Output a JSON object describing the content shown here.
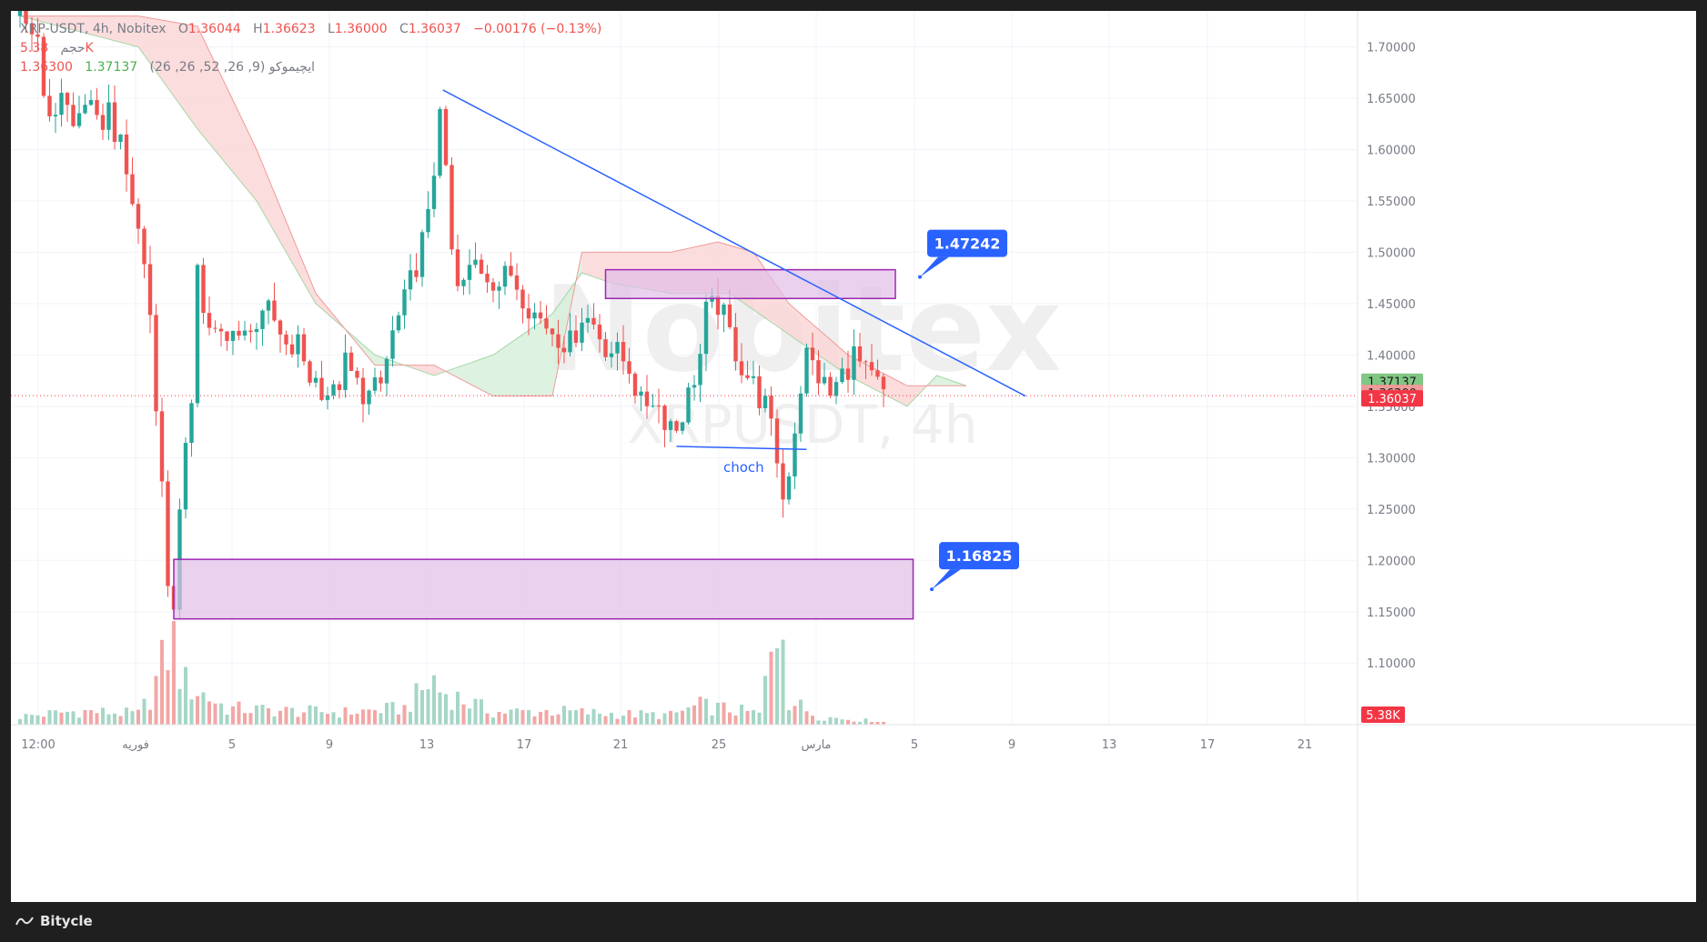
{
  "header": {
    "symbol": "XRP-USDT, 4h, Nobitex",
    "open_label": "O",
    "open": "1.36044",
    "high_label": "H",
    "high": "1.36623",
    "low_label": "L",
    "low": "1.36000",
    "close_label": "C",
    "close": "1.36037",
    "change": "−0.00176 (−0.13%)",
    "volume_label": "حجم",
    "volume_value": "5.38K",
    "ichimoku_label": "ایچیموکو (9, 26, 52, 26, 26)",
    "ichimoku_value1": "1.37137",
    "ichimoku_value2": "1.36300"
  },
  "watermark": {
    "line1": "Nobitex",
    "line2": "XRPUSDT, 4h"
  },
  "footer": {
    "brand": "Bitycle"
  },
  "colors": {
    "up": "#26a69a",
    "down": "#ef5350",
    "trendline": "#2962ff",
    "zone_fill": "#e1bee7",
    "zone_stroke": "#9c27b0",
    "callout": "#2962ff",
    "cloud_red": "#fbd5d5",
    "cloud_green": "#d6efd9"
  },
  "chart_data": {
    "type": "candlestick",
    "title": "XRP-USDT, 4h, Nobitex",
    "ylim": [
      1.04,
      1.735
    ],
    "y_ticks": [
      "1.10000",
      "1.15000",
      "1.20000",
      "1.25000",
      "1.30000",
      "1.35000",
      "1.40000",
      "1.45000",
      "1.50000",
      "1.55000",
      "1.60000",
      "1.65000",
      "1.70000"
    ],
    "x_ticks": [
      "12:00",
      "فوریه",
      "5",
      "9",
      "13",
      "17",
      "21",
      "25",
      "مارس",
      "5",
      "9",
      "13",
      "17",
      "21"
    ],
    "price_labels": [
      {
        "value": 1.37137,
        "text": "1.37137",
        "color": "#81c784"
      },
      {
        "value": 1.363,
        "text": "1.36300",
        "color": "#ef9a9a"
      },
      {
        "value": 1.36037,
        "text": "1.36037",
        "color": "#f23645"
      }
    ],
    "volume_label": "5.38K",
    "last_price": 1.36037,
    "price_path": [
      [
        0,
        1.73
      ],
      [
        3,
        1.71
      ],
      [
        5,
        1.62
      ],
      [
        7,
        1.66
      ],
      [
        9,
        1.62
      ],
      [
        11,
        1.65
      ],
      [
        13,
        1.62
      ],
      [
        15,
        1.64
      ],
      [
        17,
        1.6
      ],
      [
        19,
        1.55
      ],
      [
        20,
        1.52
      ],
      [
        21,
        1.49
      ],
      [
        22,
        1.44
      ],
      [
        23,
        1.36
      ],
      [
        24,
        1.27
      ],
      [
        25,
        1.18
      ],
      [
        26,
        1.16
      ],
      [
        27,
        1.24
      ],
      [
        29,
        1.36
      ],
      [
        30,
        1.5
      ],
      [
        31,
        1.44
      ],
      [
        33,
        1.42
      ],
      [
        35,
        1.41
      ],
      [
        37,
        1.43
      ],
      [
        39,
        1.42
      ],
      [
        41,
        1.45
      ],
      [
        43,
        1.43
      ],
      [
        45,
        1.4
      ],
      [
        47,
        1.41
      ],
      [
        49,
        1.38
      ],
      [
        51,
        1.37
      ],
      [
        53,
        1.36
      ],
      [
        55,
        1.39
      ],
      [
        57,
        1.37
      ],
      [
        59,
        1.36
      ],
      [
        61,
        1.37
      ],
      [
        63,
        1.42
      ],
      [
        65,
        1.45
      ],
      [
        67,
        1.49
      ],
      [
        69,
        1.53
      ],
      [
        70,
        1.58
      ],
      [
        71,
        1.65
      ],
      [
        72,
        1.57
      ],
      [
        73,
        1.5
      ],
      [
        74,
        1.46
      ],
      [
        75,
        1.47
      ],
      [
        77,
        1.49
      ],
      [
        79,
        1.48
      ],
      [
        81,
        1.47
      ],
      [
        83,
        1.48
      ],
      [
        85,
        1.46
      ],
      [
        87,
        1.44
      ],
      [
        89,
        1.43
      ],
      [
        91,
        1.42
      ],
      [
        93,
        1.41
      ],
      [
        95,
        1.44
      ],
      [
        97,
        1.43
      ],
      [
        99,
        1.41
      ],
      [
        101,
        1.4
      ],
      [
        103,
        1.39
      ],
      [
        105,
        1.35
      ],
      [
        107,
        1.36
      ],
      [
        109,
        1.34
      ],
      [
        111,
        1.33
      ],
      [
        113,
        1.36
      ],
      [
        115,
        1.4
      ],
      [
        116,
        1.44
      ],
      [
        118,
        1.45
      ],
      [
        120,
        1.42
      ],
      [
        122,
        1.39
      ],
      [
        124,
        1.37
      ],
      [
        126,
        1.35
      ],
      [
        128,
        1.3
      ],
      [
        129,
        1.26
      ],
      [
        130,
        1.29
      ],
      [
        131,
        1.33
      ],
      [
        132,
        1.37
      ],
      [
        133,
        1.4
      ],
      [
        135,
        1.38
      ],
      [
        137,
        1.36
      ],
      [
        139,
        1.38
      ],
      [
        141,
        1.4
      ],
      [
        143,
        1.38
      ],
      [
        145,
        1.37
      ],
      [
        146,
        1.36
      ]
    ],
    "volume_path": [
      [
        0,
        0.06
      ],
      [
        10,
        0.1
      ],
      [
        20,
        0.08
      ],
      [
        22,
        0.2
      ],
      [
        25,
        0.55
      ],
      [
        26,
        0.6
      ],
      [
        27,
        0.4
      ],
      [
        28,
        0.3
      ],
      [
        35,
        0.12
      ],
      [
        45,
        0.1
      ],
      [
        55,
        0.09
      ],
      [
        65,
        0.12
      ],
      [
        70,
        0.33
      ],
      [
        71,
        0.25
      ],
      [
        80,
        0.09
      ],
      [
        90,
        0.1
      ],
      [
        100,
        0.08
      ],
      [
        110,
        0.07
      ],
      [
        115,
        0.14
      ],
      [
        125,
        0.08
      ],
      [
        129,
        0.9
      ],
      [
        130,
        0.18
      ],
      [
        135,
        0.06
      ],
      [
        146,
        0.02
      ]
    ],
    "ichimoku_span_a": [
      [
        0,
        1.73
      ],
      [
        20,
        1.7
      ],
      [
        30,
        1.62
      ],
      [
        40,
        1.55
      ],
      [
        50,
        1.45
      ],
      [
        60,
        1.4
      ],
      [
        70,
        1.38
      ],
      [
        80,
        1.4
      ],
      [
        90,
        1.44
      ],
      [
        95,
        1.48
      ],
      [
        100,
        1.47
      ],
      [
        110,
        1.46
      ],
      [
        120,
        1.46
      ],
      [
        130,
        1.42
      ],
      [
        140,
        1.38
      ],
      [
        150,
        1.35
      ],
      [
        155,
        1.38
      ],
      [
        160,
        1.37
      ]
    ],
    "ichimoku_span_b": [
      [
        0,
        1.73
      ],
      [
        20,
        1.73
      ],
      [
        30,
        1.72
      ],
      [
        40,
        1.6
      ],
      [
        50,
        1.46
      ],
      [
        60,
        1.39
      ],
      [
        70,
        1.39
      ],
      [
        80,
        1.36
      ],
      [
        90,
        1.36
      ],
      [
        95,
        1.5
      ],
      [
        100,
        1.5
      ],
      [
        110,
        1.5
      ],
      [
        118,
        1.51
      ],
      [
        124,
        1.5
      ],
      [
        130,
        1.45
      ],
      [
        140,
        1.4
      ],
      [
        150,
        1.37
      ],
      [
        160,
        1.37
      ]
    ],
    "drawings": {
      "trendline": {
        "x1": 71.5,
        "y1": 1.658,
        "x2": 170,
        "y2": 1.36
      },
      "choch_line": {
        "x1": 111,
        "y1": 1.311,
        "x2": 133,
        "y2": 1.308,
        "label": "choch"
      },
      "zones": [
        {
          "x1": 99,
          "x2": 148,
          "y1": 1.455,
          "y2": 1.483
        },
        {
          "x1": 26,
          "x2": 151,
          "y1": 1.143,
          "y2": 1.201
        }
      ],
      "callouts": [
        {
          "text": "1.47242",
          "x": 150,
          "value": 1.47242
        },
        {
          "text": "1.16825",
          "x": 152,
          "value": 1.16825
        }
      ]
    }
  }
}
